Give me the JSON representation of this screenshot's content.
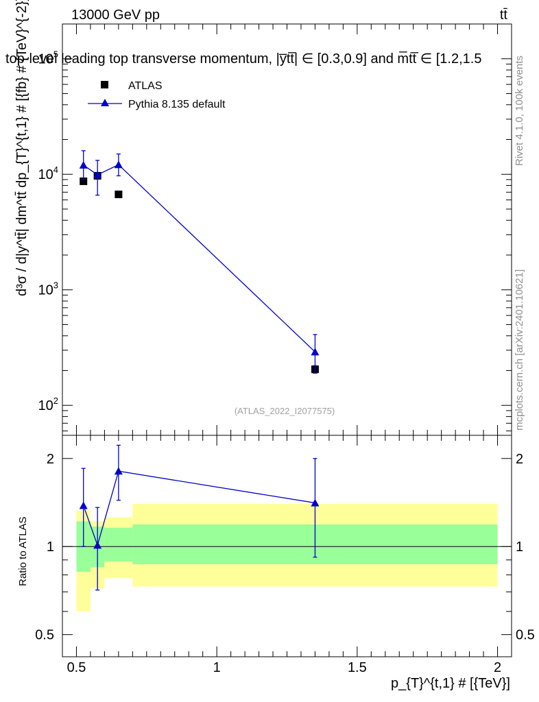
{
  "header": {
    "energy_label": "13000 GeV pp",
    "process_label": "tt̄",
    "title": "top-level leading top transverse momentum, |y̅tt̅| ∈ [0.3,0.9] and m̅tt̅ ∈ [1.2,1.5"
  },
  "side_labels": {
    "rivet": "Rivet 4.1.0,  100k events",
    "mcplots": "mcplots.cern.ch [arXiv:2401.10621]"
  },
  "reference_tag": "(ATLAS_2022_I2077575)",
  "colors": {
    "data_marker": "#000000",
    "mc_line": "#0000cc",
    "band_inner": "#99ff99",
    "band_outer": "#ffff99"
  },
  "chart_data": [
    {
      "type": "scatter",
      "panel": "main",
      "ylabel": "d³σ / d|y^tt̄| dm^tt̄ dp_{T}^{t,1} # [{fb} # {TeV}^{-2}]",
      "yscale": "log",
      "ylim": [
        55,
        200000
      ],
      "xlim": [
        0.45,
        2.05
      ],
      "yticks": [
        100,
        1000,
        10000,
        100000
      ],
      "ytick_labels": [
        {
          "base": "10",
          "exp": "2"
        },
        {
          "base": "10",
          "exp": "3"
        },
        {
          "base": "10",
          "exp": "4"
        },
        {
          "base": "10",
          "exp": "5"
        }
      ],
      "legend": {
        "position": "top-left",
        "entries": [
          "ATLAS",
          "Pythia 8.135 default"
        ]
      },
      "series": [
        {
          "name": "ATLAS",
          "style": "square",
          "points": [
            {
              "x": 0.525,
              "y": 8700
            },
            {
              "x": 0.575,
              "y": 9700
            },
            {
              "x": 0.65,
              "y": 6700
            },
            {
              "x": 1.35,
              "y": 205,
              "yerr_lo": 190,
              "yerr_hi": 220
            }
          ]
        },
        {
          "name": "Pythia 8.135 default",
          "style": "triangle-line",
          "points": [
            {
              "x": 0.525,
              "y": 12000,
              "yerr_lo": 9000,
              "yerr_hi": 16000
            },
            {
              "x": 0.575,
              "y": 9900,
              "yerr_lo": 6600,
              "yerr_hi": 13200
            },
            {
              "x": 0.65,
              "y": 12100,
              "yerr_lo": 9700,
              "yerr_hi": 15000
            },
            {
              "x": 1.35,
              "y": 290,
              "yerr_lo": 190,
              "yerr_hi": 410
            }
          ]
        }
      ]
    },
    {
      "type": "scatter",
      "panel": "ratio",
      "ylabel": "Ratio to ATLAS",
      "xlabel": "p_{T}^{t,1} # [{TeV}]",
      "yscale": "log",
      "ylim": [
        0.42,
        2.4
      ],
      "xlim": [
        0.45,
        2.05
      ],
      "xticks": [
        0.5,
        1,
        1.5,
        2
      ],
      "xtick_labels": [
        "0.5",
        "1",
        "1.5",
        "2"
      ],
      "yticks": [
        0.5,
        1,
        2
      ],
      "ytick_labels": [
        "0.5",
        "1",
        "2"
      ],
      "bands": [
        {
          "x0": 0.5,
          "x1": 0.55,
          "outer": [
            0.6,
            1.33
          ],
          "inner": [
            0.82,
            1.22
          ]
        },
        {
          "x0": 0.55,
          "x1": 0.6,
          "outer": [
            0.72,
            1.22
          ],
          "inner": [
            0.85,
            1.17
          ]
        },
        {
          "x0": 0.6,
          "x1": 0.7,
          "outer": [
            0.78,
            1.26
          ],
          "inner": [
            0.89,
            1.16
          ]
        },
        {
          "x0": 0.7,
          "x1": 2.0,
          "outer": [
            0.73,
            1.4
          ],
          "inner": [
            0.87,
            1.19
          ]
        }
      ],
      "series": [
        {
          "name": "Pythia 8.135 default",
          "points": [
            {
              "x": 0.525,
              "y": 1.38,
              "yerr_lo": 1.0,
              "yerr_hi": 1.85
            },
            {
              "x": 0.575,
              "y": 1.01,
              "yerr_lo": 0.71,
              "yerr_hi": 1.36
            },
            {
              "x": 0.65,
              "y": 1.81,
              "yerr_lo": 1.44,
              "yerr_hi": 2.22
            },
            {
              "x": 1.35,
              "y": 1.41,
              "yerr_lo": 0.92,
              "yerr_hi": 2.0
            }
          ]
        }
      ]
    }
  ]
}
